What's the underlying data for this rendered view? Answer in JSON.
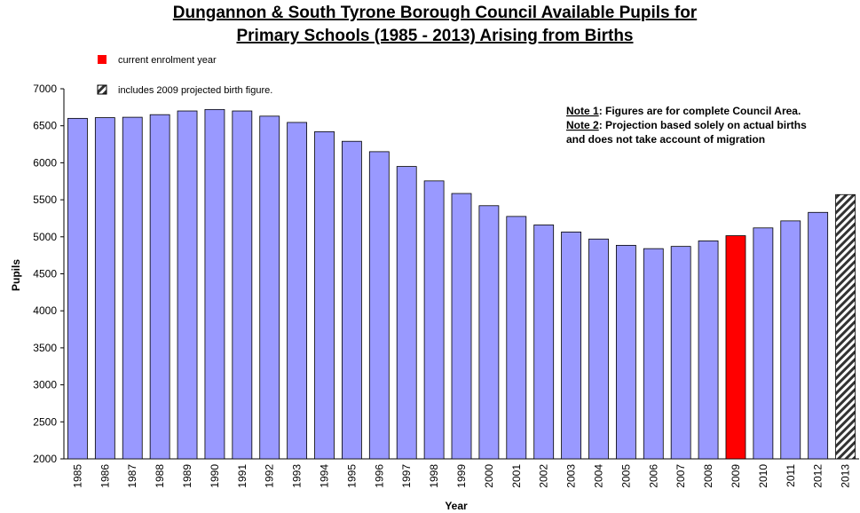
{
  "chart_data": {
    "type": "bar",
    "title": [
      "Dungannon & South Tyrone Borough Council Available Pupils for",
      "Primary Schools (1985 - 2013) Arising from Births"
    ],
    "x_label": "Year",
    "y_label": "Pupils",
    "categories": [
      "1985",
      "1986",
      "1987",
      "1988",
      "1989",
      "1990",
      "1991",
      "1992",
      "1993",
      "1994",
      "1995",
      "1996",
      "1997",
      "1998",
      "1999",
      "2000",
      "2001",
      "2002",
      "2003",
      "2004",
      "2005",
      "2006",
      "2007",
      "2008",
      "2009",
      "2010",
      "2011",
      "2012",
      "2013"
    ],
    "values": [
      6600,
      6610,
      6615,
      6650,
      6700,
      6720,
      6700,
      6630,
      6545,
      6420,
      6290,
      6150,
      5950,
      5755,
      5585,
      5420,
      5275,
      5160,
      5065,
      4970,
      4885,
      4840,
      4870,
      4945,
      5015,
      5120,
      5215,
      5330,
      5570
    ],
    "colors": [
      "#9999ff",
      "#9999ff",
      "#9999ff",
      "#9999ff",
      "#9999ff",
      "#9999ff",
      "#9999ff",
      "#9999ff",
      "#9999ff",
      "#9999ff",
      "#9999ff",
      "#9999ff",
      "#9999ff",
      "#9999ff",
      "#9999ff",
      "#9999ff",
      "#9999ff",
      "#9999ff",
      "#9999ff",
      "#9999ff",
      "#9999ff",
      "#9999ff",
      "#9999ff",
      "#9999ff",
      "#ff0000",
      "#9999ff",
      "#9999ff",
      "#9999ff",
      "hatch"
    ],
    "legend": [
      {
        "label": "current enrolment year",
        "color": "#ff0000"
      },
      {
        "label": "includes 2009 projected birth figure.",
        "color": "hatch"
      }
    ],
    "notes": [
      {
        "label": "Note 1",
        "lines": [
          ": Figures are for complete Council Area."
        ]
      },
      {
        "label": "Note 2",
        "lines": [
          ": Projection based solely on actual births",
          "and does not take account of migration"
        ]
      }
    ],
    "ylim": [
      2000,
      7000
    ],
    "yticks": [
      2000,
      2500,
      3000,
      3500,
      4000,
      4500,
      5000,
      5500,
      6000,
      6500,
      7000
    ],
    "grid": false
  }
}
